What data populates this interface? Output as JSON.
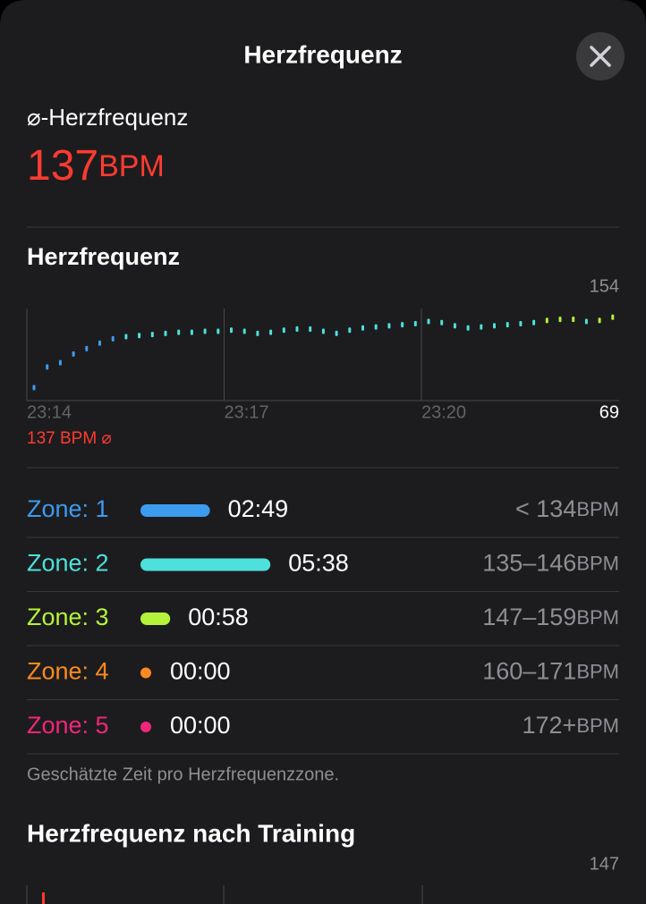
{
  "header": {
    "title": "Herzfrequenz"
  },
  "summary": {
    "label": "⌀-Herzfrequenz",
    "value": 137,
    "unit": "BPM"
  },
  "chart_data": {
    "type": "scatter",
    "title": "Herzfrequenz",
    "categories": [
      "23:14",
      null,
      null,
      null,
      null,
      null,
      null,
      null,
      null,
      null,
      null,
      null,
      null,
      null,
      null,
      "23:17",
      null,
      null,
      null,
      null,
      null,
      null,
      null,
      null,
      null,
      null,
      null,
      null,
      null,
      null,
      "23:20",
      null,
      null,
      null,
      null,
      null,
      null,
      null,
      null,
      null,
      null,
      null,
      null,
      null,
      null
    ],
    "series": [
      {
        "color": "#3d9bef",
        "values": [
          81,
          100,
          104,
          112,
          117,
          122,
          126,
          null,
          null,
          null,
          null,
          null,
          null,
          null,
          null,
          null,
          null,
          null,
          null,
          null,
          null,
          null,
          null,
          null,
          null,
          null,
          null,
          null,
          null,
          null,
          null,
          null,
          null,
          null,
          null,
          null,
          null,
          null,
          null,
          null,
          null,
          null,
          null,
          null,
          null
        ]
      },
      {
        "color": "#4ee0da",
        "values": [
          null,
          null,
          null,
          null,
          null,
          null,
          null,
          128,
          129,
          130,
          131,
          132,
          132,
          133,
          133,
          134,
          133,
          131,
          132,
          134,
          135,
          135,
          133,
          131,
          134,
          136,
          137,
          138,
          139,
          140,
          142,
          141,
          138,
          136,
          137,
          138,
          139,
          140,
          141,
          null,
          null,
          null,
          142,
          null,
          null
        ]
      },
      {
        "color": "#b5f23c",
        "values": [
          null,
          null,
          null,
          null,
          null,
          null,
          null,
          null,
          null,
          null,
          null,
          null,
          null,
          null,
          null,
          null,
          null,
          null,
          null,
          null,
          null,
          null,
          null,
          null,
          null,
          null,
          null,
          null,
          null,
          null,
          null,
          null,
          null,
          null,
          null,
          null,
          null,
          null,
          null,
          143,
          144,
          144,
          null,
          143,
          146
        ]
      }
    ],
    "ylim": [
      69,
      154
    ],
    "yticks": [
      69,
      154
    ],
    "annotation": "137 BPM ⌀"
  },
  "zones": [
    {
      "label": "Zone: 1",
      "color": "#3d9bef",
      "duration": "02:49",
      "range": "< 134",
      "unit": "BPM"
    },
    {
      "label": "Zone: 2",
      "color": "#4ee0da",
      "duration": "05:38",
      "range": "135–146",
      "unit": "BPM"
    },
    {
      "label": "Zone: 3",
      "color": "#b5f23c",
      "duration": "00:58",
      "range": "147–159",
      "unit": "BPM"
    },
    {
      "label": "Zone: 4",
      "color": "#ff8a1f",
      "duration": "00:00",
      "range": "160–171",
      "unit": "BPM"
    },
    {
      "label": "Zone: 5",
      "color": "#f0267a",
      "duration": "00:00",
      "range": "172+",
      "unit": "BPM"
    }
  ],
  "footnote": "Geschätzte Zeit pro Herzfrequenzzone.",
  "recovery": {
    "title": "Herzfrequenz nach Training",
    "top_label": 147
  }
}
